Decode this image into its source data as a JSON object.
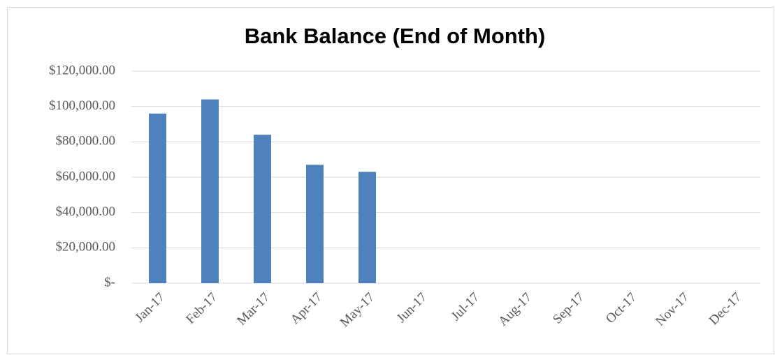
{
  "chart_data": {
    "type": "bar",
    "title": "Bank Balance (End of Month)",
    "categories": [
      "Jan-17",
      "Feb-17",
      "Mar-17",
      "Apr-17",
      "May-17",
      "Jun-17",
      "Jul-17",
      "Aug-17",
      "Sep-17",
      "Oct-17",
      "Nov-17",
      "Dec-17"
    ],
    "values": [
      96000,
      104000,
      84000,
      67000,
      63000,
      null,
      null,
      null,
      null,
      null,
      null,
      null
    ],
    "color": "#4f81bd",
    "ylim": [
      0,
      120000
    ],
    "yticks": [
      {
        "value": 0,
        "label": "$-"
      },
      {
        "value": 20000,
        "label": "$20,000.00"
      },
      {
        "value": 40000,
        "label": "$40,000.00"
      },
      {
        "value": 60000,
        "label": "$60,000.00"
      },
      {
        "value": 80000,
        "label": "$80,000.00"
      },
      {
        "value": 100000,
        "label": "$100,000.00"
      },
      {
        "value": 120000,
        "label": "$120,000.00"
      }
    ],
    "grid": true
  }
}
